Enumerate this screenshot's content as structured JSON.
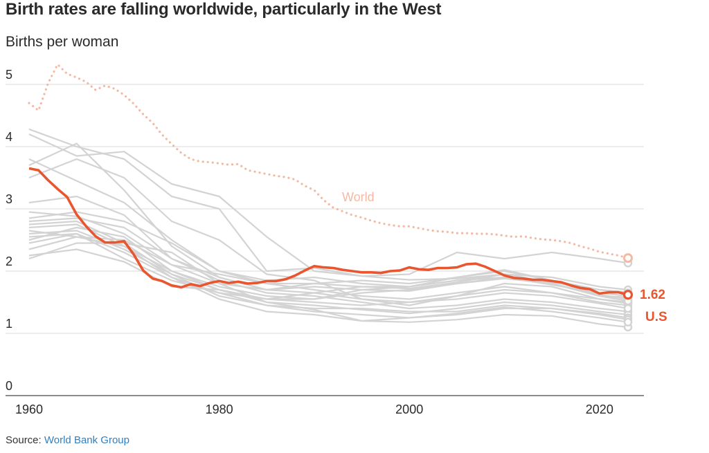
{
  "chart_data": {
    "type": "line",
    "title": "Birth rates are falling worldwide, particularly in the West",
    "ylabel": "Births per woman",
    "xlabel": "",
    "xlim": [
      1960,
      2023
    ],
    "ylim": [
      0,
      5
    ],
    "x_ticks": [
      1960,
      1980,
      2000,
      2020
    ],
    "y_ticks": [
      0,
      1,
      2,
      3,
      4,
      5
    ],
    "grid": true,
    "source_prefix": "Source: ",
    "source_name": "World Bank Group",
    "highlight": {
      "name": "U.S",
      "value_label": "1.62",
      "color": "#e8552e",
      "x": [
        1960,
        1961,
        1962,
        1963,
        1964,
        1965,
        1966,
        1967,
        1968,
        1969,
        1970,
        1971,
        1972,
        1973,
        1974,
        1975,
        1976,
        1977,
        1978,
        1979,
        1980,
        1981,
        1982,
        1983,
        1984,
        1985,
        1986,
        1987,
        1988,
        1989,
        1990,
        1991,
        1992,
        1993,
        1994,
        1995,
        1996,
        1997,
        1998,
        1999,
        2000,
        2001,
        2002,
        2003,
        2004,
        2005,
        2006,
        2007,
        2008,
        2009,
        2010,
        2011,
        2012,
        2013,
        2014,
        2015,
        2016,
        2017,
        2018,
        2019,
        2020,
        2021,
        2022,
        2023
      ],
      "values": [
        3.65,
        3.62,
        3.46,
        3.32,
        3.19,
        2.91,
        2.72,
        2.56,
        2.46,
        2.46,
        2.48,
        2.27,
        2.01,
        1.88,
        1.84,
        1.77,
        1.74,
        1.79,
        1.76,
        1.81,
        1.84,
        1.81,
        1.83,
        1.8,
        1.81,
        1.84,
        1.84,
        1.87,
        1.93,
        2.01,
        2.08,
        2.06,
        2.05,
        2.02,
        2.0,
        1.98,
        1.98,
        1.97,
        2.0,
        2.01,
        2.06,
        2.03,
        2.02,
        2.05,
        2.05,
        2.06,
        2.11,
        2.12,
        2.07,
        2.0,
        1.93,
        1.89,
        1.88,
        1.86,
        1.86,
        1.84,
        1.82,
        1.77,
        1.73,
        1.71,
        1.64,
        1.66,
        1.66,
        1.62
      ]
    },
    "world": {
      "name": "World",
      "color": "#f4b9a3",
      "x": [
        1960,
        1961,
        1962,
        1963,
        1964,
        1965,
        1966,
        1967,
        1968,
        1969,
        1970,
        1971,
        1972,
        1973,
        1974,
        1975,
        1976,
        1977,
        1978,
        1979,
        1980,
        1981,
        1982,
        1983,
        1984,
        1985,
        1986,
        1987,
        1988,
        1989,
        1990,
        1991,
        1992,
        1993,
        1994,
        1995,
        1996,
        1997,
        1998,
        1999,
        2000,
        2001,
        2002,
        2003,
        2004,
        2005,
        2006,
        2007,
        2008,
        2009,
        2010,
        2011,
        2012,
        2013,
        2014,
        2015,
        2016,
        2017,
        2018,
        2019,
        2020,
        2021,
        2022,
        2023
      ],
      "values": [
        4.7,
        4.58,
        5.02,
        5.32,
        5.17,
        5.11,
        5.04,
        4.91,
        4.98,
        4.93,
        4.83,
        4.69,
        4.52,
        4.38,
        4.19,
        4.04,
        3.9,
        3.8,
        3.76,
        3.75,
        3.73,
        3.71,
        3.72,
        3.62,
        3.59,
        3.56,
        3.53,
        3.51,
        3.47,
        3.37,
        3.3,
        3.14,
        3.02,
        2.96,
        2.9,
        2.86,
        2.81,
        2.77,
        2.74,
        2.72,
        2.72,
        2.69,
        2.66,
        2.64,
        2.63,
        2.61,
        2.61,
        2.6,
        2.6,
        2.59,
        2.57,
        2.55,
        2.56,
        2.53,
        2.51,
        2.5,
        2.48,
        2.45,
        2.4,
        2.36,
        2.31,
        2.28,
        2.25,
        2.21
      ]
    },
    "other_countries": {
      "color": "#d3d3d3",
      "x": [
        1960,
        1965,
        1970,
        1975,
        1980,
        1985,
        1990,
        1995,
        2000,
        2005,
        2010,
        2015,
        2020,
        2023
      ],
      "series": [
        [
          4.28,
          4.0,
          3.8,
          3.2,
          3.0,
          2.0,
          2.05,
          1.92,
          1.95,
          2.3,
          2.2,
          2.3,
          2.2,
          2.13
        ],
        [
          4.2,
          3.85,
          3.92,
          3.4,
          3.2,
          2.55,
          2.0,
          1.92,
          1.86,
          1.88,
          1.95,
          1.82,
          1.7,
          1.66
        ],
        [
          3.8,
          3.45,
          3.1,
          2.5,
          2.0,
          1.85,
          1.9,
          1.8,
          1.75,
          1.9,
          2.02,
          1.85,
          1.62,
          1.55
        ],
        [
          3.7,
          4.05,
          3.3,
          2.4,
          1.9,
          1.7,
          1.75,
          1.7,
          1.68,
          1.8,
          1.9,
          1.78,
          1.65,
          1.6
        ],
        [
          3.5,
          3.8,
          3.5,
          2.8,
          2.5,
          1.95,
          1.85,
          1.55,
          1.45,
          1.6,
          1.8,
          1.75,
          1.55,
          1.5
        ],
        [
          3.1,
          3.2,
          2.9,
          2.2,
          1.9,
          1.7,
          1.8,
          1.75,
          1.72,
          1.82,
          1.95,
          1.8,
          1.6,
          1.58
        ],
        [
          2.95,
          2.88,
          2.6,
          2.1,
          1.8,
          1.7,
          1.65,
          1.55,
          1.5,
          1.6,
          1.7,
          1.65,
          1.55,
          1.48
        ],
        [
          2.85,
          2.95,
          2.8,
          2.45,
          2.0,
          1.8,
          1.7,
          1.6,
          1.55,
          1.65,
          1.75,
          1.65,
          1.5,
          1.45
        ],
        [
          2.8,
          2.85,
          2.7,
          2.2,
          1.85,
          1.65,
          1.6,
          1.5,
          1.4,
          1.45,
          1.55,
          1.5,
          1.4,
          1.35
        ],
        [
          2.75,
          2.8,
          2.45,
          1.95,
          1.7,
          1.5,
          1.45,
          1.38,
          1.32,
          1.4,
          1.5,
          1.45,
          1.35,
          1.3
        ],
        [
          2.7,
          2.75,
          2.4,
          2.0,
          1.75,
          1.6,
          1.55,
          1.7,
          1.75,
          1.85,
          1.95,
          1.9,
          1.75,
          1.7
        ],
        [
          2.65,
          2.55,
          2.5,
          2.1,
          1.95,
          1.8,
          1.8,
          1.85,
          1.8,
          1.9,
          2.0,
          1.85,
          1.7,
          1.65
        ],
        [
          2.6,
          2.65,
          2.35,
          1.95,
          1.6,
          1.45,
          1.4,
          1.4,
          1.35,
          1.35,
          1.45,
          1.4,
          1.32,
          1.25
        ],
        [
          2.55,
          2.6,
          2.3,
          1.9,
          1.65,
          1.55,
          1.55,
          1.65,
          1.7,
          1.8,
          1.88,
          1.8,
          1.62,
          1.55
        ],
        [
          2.5,
          2.7,
          2.55,
          2.0,
          1.7,
          1.55,
          1.5,
          1.45,
          1.5,
          1.55,
          1.65,
          1.6,
          1.48,
          1.4
        ],
        [
          2.45,
          2.6,
          2.2,
          1.85,
          1.65,
          1.45,
          1.35,
          1.3,
          1.25,
          1.3,
          1.4,
          1.4,
          1.3,
          1.22
        ],
        [
          2.35,
          2.55,
          2.4,
          1.9,
          1.55,
          1.35,
          1.3,
          1.2,
          1.18,
          1.22,
          1.3,
          1.28,
          1.15,
          1.1
        ],
        [
          2.25,
          2.35,
          2.15,
          1.75,
          1.7,
          1.55,
          1.65,
          1.75,
          1.75,
          1.85,
          1.9,
          1.8,
          1.6,
          1.52
        ],
        [
          2.2,
          2.45,
          2.45,
          2.3,
          1.8,
          1.5,
          1.38,
          1.2,
          1.25,
          1.32,
          1.42,
          1.35,
          1.25,
          1.18
        ]
      ]
    }
  }
}
